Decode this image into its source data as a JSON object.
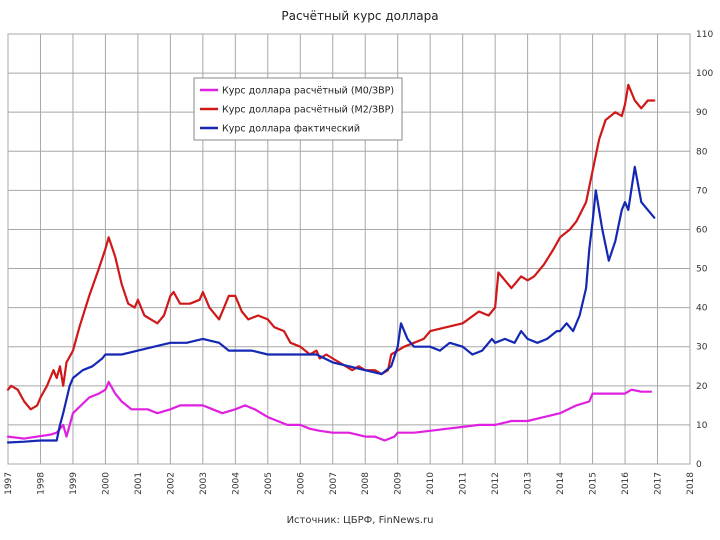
{
  "chart_data": {
    "type": "line",
    "title": "Расчётный курс доллара",
    "source": "Источник: ЦБРФ, FinNews.ru",
    "xlabel": "",
    "ylabel": "",
    "xlim": [
      1997,
      2018
    ],
    "ylim": [
      0,
      110
    ],
    "x_ticks": [
      "1997",
      "1998",
      "1999",
      "2000",
      "2001",
      "2002",
      "2003",
      "2004",
      "2005",
      "2006",
      "2007",
      "2008",
      "2009",
      "2010",
      "2011",
      "2012",
      "2013",
      "2014",
      "2015",
      "2016",
      "2017",
      "2018"
    ],
    "y_ticks": [
      "0",
      "10",
      "20",
      "30",
      "40",
      "50",
      "60",
      "70",
      "80",
      "90",
      "100",
      "110"
    ],
    "legend_position": "top-left",
    "series": [
      {
        "name": "Курс доллара расчётный (M0/ЗВР)",
        "color": "#e020e0",
        "points": [
          [
            1997.0,
            7
          ],
          [
            1997.5,
            6.5
          ],
          [
            1997.9,
            7
          ],
          [
            1998.3,
            7.5
          ],
          [
            1998.5,
            8
          ],
          [
            1998.7,
            10
          ],
          [
            1998.8,
            7
          ],
          [
            1999.0,
            13
          ],
          [
            1999.5,
            17
          ],
          [
            1999.8,
            18
          ],
          [
            2000.0,
            19
          ],
          [
            2000.1,
            21
          ],
          [
            2000.3,
            18
          ],
          [
            2000.5,
            16
          ],
          [
            2000.8,
            14
          ],
          [
            2001.0,
            14
          ],
          [
            2001.3,
            14
          ],
          [
            2001.6,
            13
          ],
          [
            2002.0,
            14
          ],
          [
            2002.3,
            15
          ],
          [
            2002.6,
            15
          ],
          [
            2003.0,
            15
          ],
          [
            2003.3,
            14
          ],
          [
            2003.6,
            13
          ],
          [
            2004.0,
            14
          ],
          [
            2004.3,
            15
          ],
          [
            2004.6,
            14
          ],
          [
            2005.0,
            12
          ],
          [
            2005.3,
            11
          ],
          [
            2005.6,
            10
          ],
          [
            2006.0,
            10
          ],
          [
            2006.3,
            9
          ],
          [
            2006.6,
            8.5
          ],
          [
            2007.0,
            8
          ],
          [
            2007.5,
            8
          ],
          [
            2008.0,
            7
          ],
          [
            2008.3,
            7
          ],
          [
            2008.6,
            6
          ],
          [
            2008.9,
            7
          ],
          [
            2009.0,
            8
          ],
          [
            2009.5,
            8
          ],
          [
            2010.0,
            8.5
          ],
          [
            2010.5,
            9
          ],
          [
            2011.0,
            9.5
          ],
          [
            2011.5,
            10
          ],
          [
            2012.0,
            10
          ],
          [
            2012.5,
            11
          ],
          [
            2013.0,
            11
          ],
          [
            2013.5,
            12
          ],
          [
            2014.0,
            13
          ],
          [
            2014.5,
            15
          ],
          [
            2014.9,
            16
          ],
          [
            2015.0,
            18
          ],
          [
            2015.5,
            18
          ],
          [
            2016.0,
            18
          ],
          [
            2016.2,
            19
          ],
          [
            2016.5,
            18.5
          ],
          [
            2016.8,
            18.5
          ]
        ]
      },
      {
        "name": "Курс доллара расчётный (M2/ЗВР)",
        "color": "#d01818",
        "points": [
          [
            1997.0,
            19
          ],
          [
            1997.1,
            20
          ],
          [
            1997.3,
            19
          ],
          [
            1997.5,
            16
          ],
          [
            1997.7,
            14
          ],
          [
            1997.9,
            15
          ],
          [
            1998.0,
            17
          ],
          [
            1998.2,
            20
          ],
          [
            1998.4,
            24
          ],
          [
            1998.5,
            22
          ],
          [
            1998.6,
            25
          ],
          [
            1998.7,
            20
          ],
          [
            1998.8,
            26
          ],
          [
            1999.0,
            29
          ],
          [
            1999.2,
            35
          ],
          [
            1999.5,
            43
          ],
          [
            1999.8,
            50
          ],
          [
            2000.0,
            55
          ],
          [
            2000.1,
            58
          ],
          [
            2000.3,
            53
          ],
          [
            2000.5,
            46
          ],
          [
            2000.7,
            41
          ],
          [
            2000.9,
            40
          ],
          [
            2001.0,
            42
          ],
          [
            2001.2,
            38
          ],
          [
            2001.4,
            37
          ],
          [
            2001.6,
            36
          ],
          [
            2001.8,
            38
          ],
          [
            2002.0,
            43
          ],
          [
            2002.1,
            44
          ],
          [
            2002.3,
            41
          ],
          [
            2002.6,
            41
          ],
          [
            2002.9,
            42
          ],
          [
            2003.0,
            44
          ],
          [
            2003.2,
            40
          ],
          [
            2003.5,
            37
          ],
          [
            2003.8,
            43
          ],
          [
            2004.0,
            43
          ],
          [
            2004.2,
            39
          ],
          [
            2004.4,
            37
          ],
          [
            2004.7,
            38
          ],
          [
            2005.0,
            37
          ],
          [
            2005.2,
            35
          ],
          [
            2005.5,
            34
          ],
          [
            2005.7,
            31
          ],
          [
            2006.0,
            30
          ],
          [
            2006.3,
            28
          ],
          [
            2006.5,
            29
          ],
          [
            2006.6,
            27
          ],
          [
            2006.8,
            28
          ],
          [
            2007.0,
            27
          ],
          [
            2007.2,
            26
          ],
          [
            2007.4,
            25
          ],
          [
            2007.6,
            24
          ],
          [
            2007.8,
            25
          ],
          [
            2008.0,
            24
          ],
          [
            2008.3,
            24
          ],
          [
            2008.5,
            23
          ],
          [
            2008.7,
            24
          ],
          [
            2008.8,
            28
          ],
          [
            2009.0,
            29
          ],
          [
            2009.2,
            30
          ],
          [
            2009.5,
            31
          ],
          [
            2009.8,
            32
          ],
          [
            2010.0,
            34
          ],
          [
            2010.5,
            35
          ],
          [
            2011.0,
            36
          ],
          [
            2011.5,
            39
          ],
          [
            2011.8,
            38
          ],
          [
            2012.0,
            40
          ],
          [
            2012.1,
            49
          ],
          [
            2012.3,
            47
          ],
          [
            2012.5,
            45
          ],
          [
            2012.8,
            48
          ],
          [
            2013.0,
            47
          ],
          [
            2013.2,
            48
          ],
          [
            2013.5,
            51
          ],
          [
            2013.8,
            55
          ],
          [
            2014.0,
            58
          ],
          [
            2014.3,
            60
          ],
          [
            2014.5,
            62
          ],
          [
            2014.8,
            67
          ],
          [
            2015.0,
            75
          ],
          [
            2015.2,
            83
          ],
          [
            2015.4,
            88
          ],
          [
            2015.7,
            90
          ],
          [
            2015.9,
            89
          ],
          [
            2016.0,
            92
          ],
          [
            2016.1,
            97
          ],
          [
            2016.3,
            93
          ],
          [
            2016.5,
            91
          ],
          [
            2016.7,
            93
          ],
          [
            2016.9,
            93
          ]
        ]
      },
      {
        "name": "Курс доллара фактический",
        "color": "#1428b4",
        "points": [
          [
            1997.0,
            5.5
          ],
          [
            1997.5,
            5.7
          ],
          [
            1998.0,
            6
          ],
          [
            1998.5,
            6
          ],
          [
            1998.6,
            10
          ],
          [
            1998.7,
            13
          ],
          [
            1998.9,
            20
          ],
          [
            1999.0,
            22
          ],
          [
            1999.3,
            24
          ],
          [
            1999.6,
            25
          ],
          [
            1999.9,
            27
          ],
          [
            2000.0,
            28
          ],
          [
            2000.5,
            28
          ],
          [
            2001.0,
            29
          ],
          [
            2001.5,
            30
          ],
          [
            2002.0,
            31
          ],
          [
            2002.5,
            31
          ],
          [
            2003.0,
            32
          ],
          [
            2003.5,
            31
          ],
          [
            2003.8,
            29
          ],
          [
            2004.0,
            29
          ],
          [
            2004.5,
            29
          ],
          [
            2005.0,
            28
          ],
          [
            2005.5,
            28
          ],
          [
            2006.0,
            28
          ],
          [
            2006.5,
            28
          ],
          [
            2007.0,
            26
          ],
          [
            2007.5,
            25
          ],
          [
            2008.0,
            24
          ],
          [
            2008.5,
            23
          ],
          [
            2008.8,
            25
          ],
          [
            2009.0,
            30
          ],
          [
            2009.1,
            36
          ],
          [
            2009.3,
            32
          ],
          [
            2009.5,
            30
          ],
          [
            2009.8,
            30
          ],
          [
            2010.0,
            30
          ],
          [
            2010.3,
            29
          ],
          [
            2010.6,
            31
          ],
          [
            2011.0,
            30
          ],
          [
            2011.3,
            28
          ],
          [
            2011.6,
            29
          ],
          [
            2011.9,
            32
          ],
          [
            2012.0,
            31
          ],
          [
            2012.3,
            32
          ],
          [
            2012.6,
            31
          ],
          [
            2012.8,
            34
          ],
          [
            2013.0,
            32
          ],
          [
            2013.3,
            31
          ],
          [
            2013.6,
            32
          ],
          [
            2013.9,
            34
          ],
          [
            2014.0,
            34
          ],
          [
            2014.2,
            36
          ],
          [
            2014.4,
            34
          ],
          [
            2014.6,
            38
          ],
          [
            2014.8,
            45
          ],
          [
            2014.9,
            55
          ],
          [
            2015.0,
            62
          ],
          [
            2015.1,
            70
          ],
          [
            2015.3,
            60
          ],
          [
            2015.5,
            52
          ],
          [
            2015.7,
            57
          ],
          [
            2015.9,
            65
          ],
          [
            2016.0,
            67
          ],
          [
            2016.1,
            65
          ],
          [
            2016.3,
            76
          ],
          [
            2016.5,
            67
          ],
          [
            2016.7,
            65
          ],
          [
            2016.9,
            63
          ]
        ]
      }
    ]
  }
}
